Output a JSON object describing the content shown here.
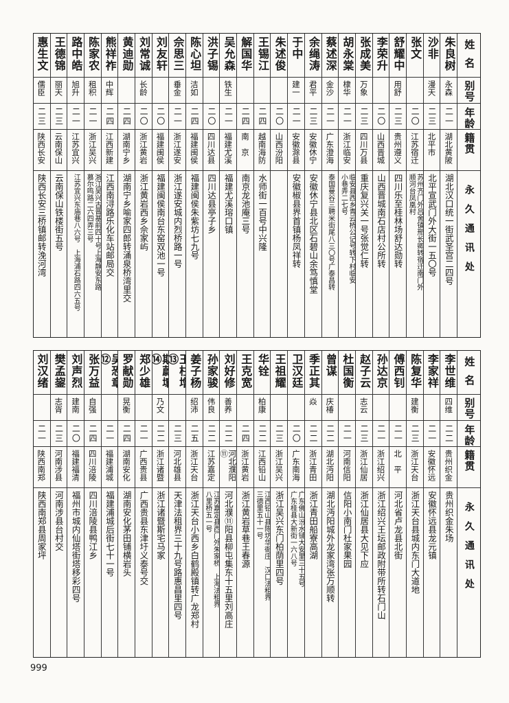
{
  "headers": {
    "name": "姓名",
    "alias": "别号",
    "age": "年龄",
    "origin": "籍贯",
    "address": "永久通讯处"
  },
  "top_table": [
    {
      "name": "朱良树",
      "alias": "永森",
      "age": "二一",
      "origin": "湖北黄陂",
      "address": [
        "湖北汉口统一街武圣宫二四号"
      ]
    },
    {
      "name": "沙非",
      "alias": "漫天",
      "age": "二三",
      "origin": "北平市",
      "address": [
        "北平宣武门外大街一五〇号"
      ]
    },
    {
      "name": "张文",
      "alias": "",
      "age": "二〇",
      "origin": "江苏宿迁",
      "address": [
        "苏州齐门外吕舍镇邢长卿转宿迁南门外",
        "顺河台凤凰村"
      ]
    },
    {
      "name": "舒耀中",
      "alias": "用舒",
      "age": "二三",
      "origin": "贵州遵义",
      "address": [
        "四川乐至桂林场舒达勋转"
      ]
    },
    {
      "name": "李荣升",
      "alias": "",
      "age": "二〇",
      "origin": "山西晋城",
      "address": [
        "山西晋城南石店村公所转"
      ]
    },
    {
      "name": "张成美",
      "alias": "万象",
      "age": "二三",
      "origin": "四川万县",
      "address": [
        "重庆复兴关一号张觉仁转"
      ]
    },
    {
      "name": "胡永棠",
      "alias": "棣华",
      "age": "二一",
      "origin": "浙江临安",
      "address": [
        "临安县西乡青云桥公记号转下村临安",
        "小巷弄二七号"
      ]
    },
    {
      "name": "蔡述深",
      "alias": "金沙",
      "age": "二一",
      "origin": "广东澄海",
      "address": [
        "泰国曼谷三聘米街尾八三〇号广泰昌转"
      ]
    },
    {
      "name": "余绳涛",
      "alias": "君平",
      "age": "二三",
      "origin": "安徽休宁",
      "address": [
        "安徽休宁县北区石碧山余笃慎堂"
      ]
    },
    {
      "name": "于中",
      "alias": "建一",
      "age": "二一",
      "origin": "安徽滁县",
      "address": [
        "安徽椒县界首镇杨凤祥转"
      ]
    },
    {
      "name": "朱述俊",
      "alias": "",
      "age": "二〇",
      "origin": "山西汾阳",
      "address": []
    },
    {
      "name": "王锡江",
      "alias": "",
      "age": "二四",
      "origin": "越南海防",
      "address": [
        "水师街一百号中兴隆"
      ]
    },
    {
      "name": "解国华",
      "alias": "",
      "age": "二四",
      "origin": "南　京",
      "address": [
        "南京龙池庵三号"
      ]
    },
    {
      "name": "吴允森",
      "alias": "铁生",
      "age": "二一",
      "origin": "福建尤溪",
      "address": [
        "福建尤溪瑢口镇"
      ]
    },
    {
      "name": "洪子锡",
      "alias": "",
      "age": "二〇",
      "origin": "四川达县",
      "address": [
        "四川达县亭子乡"
      ]
    },
    {
      "name": "陈心坦",
      "alias": "洁如",
      "age": "二四",
      "origin": "福建闽侯",
      "address": [
        "福建闽侯朱紫坊七九号"
      ]
    },
    {
      "name": "佘思三",
      "alias": "垂金",
      "age": "二一",
      "origin": "浙江遂安",
      "address": [
        "浙江遂安城内烈桥路一号"
      ]
    },
    {
      "name": "刘友轩",
      "alias": "",
      "age": "二〇",
      "origin": "福建闽侯",
      "address": [
        "福建闽侯南台东窑双池一号"
      ]
    },
    {
      "name": "刘常诚",
      "alias": "长龄",
      "age": "二〇",
      "origin": "浙江黄岩",
      "address": [
        "浙江黄岩西乡佘家屿"
      ]
    },
    {
      "name": "黄迪勋",
      "alias": "",
      "age": "二四",
      "origin": "湖南宁乡",
      "address": [
        "湖南宁乡喻家四郎转涌泉桥湾里交"
      ]
    },
    {
      "name": "熊祥祚",
      "alias": "中辉",
      "age": "二四",
      "origin": "江西新建",
      "address": [
        "江西南浔路乐化车站邮局交"
      ]
    },
    {
      "name": "陈家农",
      "alias": "租积",
      "age": "二一",
      "origin": "浙江吴兴",
      "address": [
        "浙江吴兴古晋基前四十号上海静安东路",
        "慕尔鸣路二六四弄三号"
      ]
    },
    {
      "name": "路中皓",
      "alias": "旭升",
      "age": "二一",
      "origin": "江苏宜兴",
      "address": [
        "江苏宜兴东庙巷八六号　上海浦石路四六五号"
      ]
    },
    {
      "name": "王德锦",
      "alias": "丽天",
      "age": "二三",
      "origin": "云南保山",
      "address": [
        "云南保山铁楼街五号"
      ]
    },
    {
      "name": "惠生文",
      "alias": "儒臣",
      "age": "二三",
      "origin": "陕西长安",
      "address": [
        "陕西长安三桥镇邮转浼河湾"
      ]
    }
  ],
  "bottom_table": [
    {
      "name": "李世维",
      "alias": "四维",
      "age": "二二",
      "origin": "贵州织金",
      "address": [
        "贵州织金朱场"
      ]
    },
    {
      "name": "李家祥",
      "alias": "",
      "age": "二一",
      "origin": "安徽怀远",
      "address": [
        "安徽怀远县龙元镇"
      ]
    },
    {
      "name": "陈复华",
      "alias": "建衡",
      "age": "二三",
      "origin": "浙江天台",
      "address": [
        "浙江天台县城内东门大道地"
      ]
    },
    {
      "name": "傅西钊",
      "alias": "",
      "age": "二一",
      "origin": "北　平",
      "address": [
        "河北省卢龙县北街"
      ]
    },
    {
      "name": "孙达京",
      "alias": "",
      "age": "二一",
      "origin": "浙江绍兴",
      "address": [
        "浙江绍兴王坛邮政附带所转石门山"
      ]
    },
    {
      "name": "赵子云",
      "alias": "志云",
      "age": "二三",
      "origin": "浙江仙居",
      "address": [
        "浙江仙居县大见下应"
      ]
    },
    {
      "name": "杜国衡",
      "alias": "",
      "age": "二一",
      "origin": "河南信阳",
      "address": [
        "信阳小南门杜家果园"
      ]
    },
    {
      "name": "曾谋",
      "alias": "庆椿",
      "age": "二二",
      "origin": "湖北沔阳",
      "address": [
        "湖北沔阳城外龙家湾张万顺转"
      ]
    },
    {
      "name": "季正其",
      "alias": "焱",
      "age": "二二",
      "origin": "浙江青田",
      "address": [
        "浙江青田船寮高湖"
      ]
    },
    {
      "name": "卫汉廷",
      "alias": "",
      "age": "二〇",
      "origin": "广东南海",
      "address": [
        "广东佛山汾水铺大安里三十五号",
        "广东桂县大新街一六八号"
      ]
    },
    {
      "name": "王祖耀",
      "alias": "",
      "age": "二三",
      "origin": "浙江吴兴",
      "address": [
        "浙江吴兴东门柏荫里四号"
      ]
    },
    {
      "name": "华铨",
      "alias": "柏康",
      "age": "二二",
      "origin": "江西铅山",
      "address": [
        "江西铅山县陈坊华衙庄　汉口法租界",
        "三德里五十一号"
      ]
    },
    {
      "name": "王克宽",
      "alias": "",
      "age": "二四",
      "origin": "浙江黄岩",
      "address": [
        "浙江黄岩草巷王春源"
      ]
    },
    {
      "name": "刘好修",
      "alias": "善养",
      "age": "二二",
      "origin": "河北濮阳⑪",
      "address": [
        "河北濮⑪阳县柳屯集东十五里刘高庄"
      ]
    },
    {
      "name": "孙家骏",
      "alias": "伟良",
      "age": "二二",
      "origin": "江苏嘉定",
      "address": [
        "江苏嘉定县西门外朱家桥　上海法租界",
        "八里桥五一号"
      ]
    },
    {
      "name": "姜子杨",
      "alias": "绍沛",
      "age": "二五",
      "origin": "浙江天台",
      "address": [
        "浙江天台小西乡白鹤殿镇转广龙郑村"
      ]
    },
    {
      "name": "王柱增⑬",
      "alias": "",
      "age": "二三",
      "origin": "河北雄县",
      "address": [
        "天津法租界三十九号路惠昌里四号"
      ]
    },
    {
      "name": "斯蔚壤⑭",
      "alias": "乃文",
      "age": "二二",
      "origin": "浙江诸暨",
      "address": [
        "浙江诸暨斯宅马家"
      ]
    },
    {
      "name": "郑少雄",
      "alias": "",
      "age": "二一",
      "origin": "广西贵县",
      "address": [
        "广西贵县东津圩义泰号交"
      ]
    },
    {
      "name": "罗献勋",
      "alias": "晃衡",
      "age": "二四",
      "origin": "湖南安化",
      "address": [
        "湖南安化茅田铺横岩头"
      ]
    },
    {
      "name": "吴恐章⑫",
      "alias": "",
      "age": "二一",
      "origin": "福建浦城",
      "address": [
        "福建浦城后街七十一号"
      ]
    },
    {
      "name": "张万益",
      "alias": "自强",
      "age": "二四",
      "origin": "四川涪陵",
      "address": [
        "四川涪陵县鸭江乡"
      ]
    },
    {
      "name": "刘声烈",
      "alias": "建南",
      "age": "二〇",
      "origin": "福建福清",
      "address": [
        "福州市城内仙塔街塔移彩四号"
      ]
    },
    {
      "name": "樊孟鋆",
      "alias": "志胥",
      "age": "二三",
      "origin": "河南涉县",
      "address": [
        "河南涉县台村交"
      ]
    },
    {
      "name": "刘汉绪",
      "alias": "",
      "age": "二一",
      "origin": "陕西南郑",
      "address": [
        "陕西南郑县周家坪"
      ]
    }
  ],
  "page_number": "999"
}
